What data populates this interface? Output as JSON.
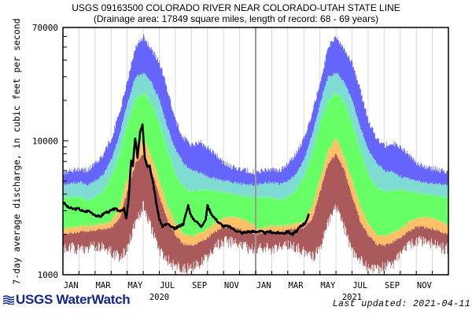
{
  "header": {
    "title": "USGS 09163500 COLORADO RIVER NEAR COLORADO-UTAH STATE LINE",
    "subtitle": "(Drainage area: 17849 square miles, length of record: 68 - 69 years)"
  },
  "footer": {
    "logo_text": "USGS WaterWatch",
    "last_updated": "Last updated: 2021-04-11"
  },
  "chart_data": {
    "type": "area",
    "title": "USGS 09163500 COLORADO RIVER NEAR COLORADO-UTAH STATE LINE",
    "subtitle": "(Drainage area: 17849 square miles, length of record: 68 - 69 years)",
    "xlabel": "",
    "ylabel": "7-day average discharge, in cubic feet per second",
    "yscale": "log",
    "ylim": [
      1000,
      70000
    ],
    "yticks": [
      1000,
      10000,
      70000
    ],
    "ytick_labels": [
      "1000",
      "10000",
      "70000"
    ],
    "xlim": [
      "2020-01-01",
      "2021-12-31"
    ],
    "xtick_labels": [
      "JAN",
      "MAR",
      "MAY",
      "JUL",
      "SEP",
      "NOV",
      "JAN",
      "MAR",
      "MAY",
      "JUL",
      "SEP",
      "NOV"
    ],
    "year_labels": [
      {
        "label": "2020",
        "month_index": 6
      },
      {
        "label": "2021",
        "month_index": 18
      }
    ],
    "grid": "vertical monthly",
    "year_divider_month_index": 12,
    "band_colors": {
      "min_10": "#aa5a5a",
      "10_25": "#ffc066",
      "25_75": "#66ff66",
      "75_90": "#7fdcd2",
      "90_max": "#6666ff",
      "flow_line": "#000000"
    },
    "percentile_bands": {
      "month_positions": [
        0,
        0.5,
        1,
        1.5,
        2,
        2.5,
        3,
        3.5,
        4,
        4.5,
        5,
        5.5,
        6,
        6.5,
        7,
        7.5,
        8,
        8.5,
        9,
        9.5,
        10,
        10.5,
        11,
        11.5,
        12
      ],
      "max": [
        5800,
        6000,
        6200,
        6000,
        6800,
        8000,
        10500,
        16000,
        28000,
        50000,
        60000,
        48000,
        38000,
        24000,
        14000,
        10500,
        9200,
        9800,
        8800,
        8000,
        6800,
        6400,
        6200,
        6000,
        5800
      ],
      "p90": [
        4700,
        4800,
        4900,
        4700,
        5000,
        5600,
        7200,
        11000,
        19000,
        30000,
        32000,
        27000,
        20000,
        12500,
        8500,
        6800,
        6000,
        5800,
        5400,
        5200,
        5000,
        4900,
        4800,
        4700,
        4700
      ],
      "p75": [
        3800,
        3800,
        3800,
        3600,
        3800,
        4300,
        5400,
        8000,
        13500,
        20000,
        23000,
        19000,
        13500,
        8500,
        5600,
        4500,
        4200,
        4300,
        4300,
        4200,
        4100,
        4000,
        3900,
        3800,
        3800
      ],
      "p25": [
        2200,
        2250,
        2300,
        2300,
        2350,
        2400,
        2500,
        3200,
        5200,
        8500,
        10500,
        7500,
        5000,
        3200,
        2400,
        2000,
        1950,
        2050,
        2200,
        2450,
        2650,
        2700,
        2650,
        2500,
        2300
      ],
      "p10": [
        2000,
        2050,
        2100,
        2100,
        2150,
        2200,
        2250,
        2600,
        4200,
        6800,
        8000,
        6000,
        3800,
        2500,
        1950,
        1700,
        1650,
        1750,
        1900,
        2100,
        2300,
        2250,
        2200,
        2100,
        2000
      ],
      "min": [
        1550,
        1600,
        1550,
        1600,
        1650,
        1600,
        1500,
        1350,
        1600,
        2500,
        3300,
        2200,
        1500,
        1300,
        1150,
        1100,
        1150,
        1200,
        1400,
        1650,
        1800,
        1750,
        1700,
        1600,
        1550
      ]
    },
    "series": [
      {
        "name": "7-day average discharge (2020-2021)",
        "x_months": [
          0,
          0.3,
          0.6,
          1,
          1.3,
          1.6,
          2,
          2.3,
          2.6,
          3,
          3.2,
          3.5,
          3.8,
          3.95,
          4.1,
          4.25,
          4.35,
          4.5,
          4.65,
          4.8,
          4.95,
          5.1,
          5.25,
          5.4,
          5.6,
          5.8,
          6.0,
          6.2,
          6.5,
          6.8,
          7.0,
          7.2,
          7.5,
          7.8,
          8.0,
          8.3,
          8.6,
          8.9,
          9.0,
          9.2,
          9.5,
          9.8,
          10.0,
          10.3,
          10.6,
          10.9,
          11.2,
          11.5,
          11.8,
          12.0,
          12.3,
          12.6,
          12.9,
          13.2,
          13.5,
          13.8,
          14.0,
          14.3,
          14.6,
          14.8,
          15.0,
          15.1,
          15.3
        ],
        "values": [
          3500,
          3200,
          3100,
          3100,
          2950,
          3000,
          2800,
          2700,
          2900,
          3000,
          3100,
          3000,
          3100,
          2600,
          3800,
          7200,
          6500,
          10500,
          7500,
          11500,
          13000,
          7500,
          6500,
          6500,
          5000,
          3500,
          2600,
          2300,
          2400,
          2250,
          2200,
          2300,
          2400,
          3300,
          2700,
          2500,
          2300,
          2600,
          3300,
          2900,
          2600,
          2400,
          2300,
          2300,
          2200,
          2100,
          2050,
          2100,
          2100,
          2100,
          2100,
          2050,
          2100,
          2050,
          2050,
          2050,
          2100,
          2000,
          2150,
          2300,
          2400,
          2400,
          2850
        ]
      }
    ]
  }
}
